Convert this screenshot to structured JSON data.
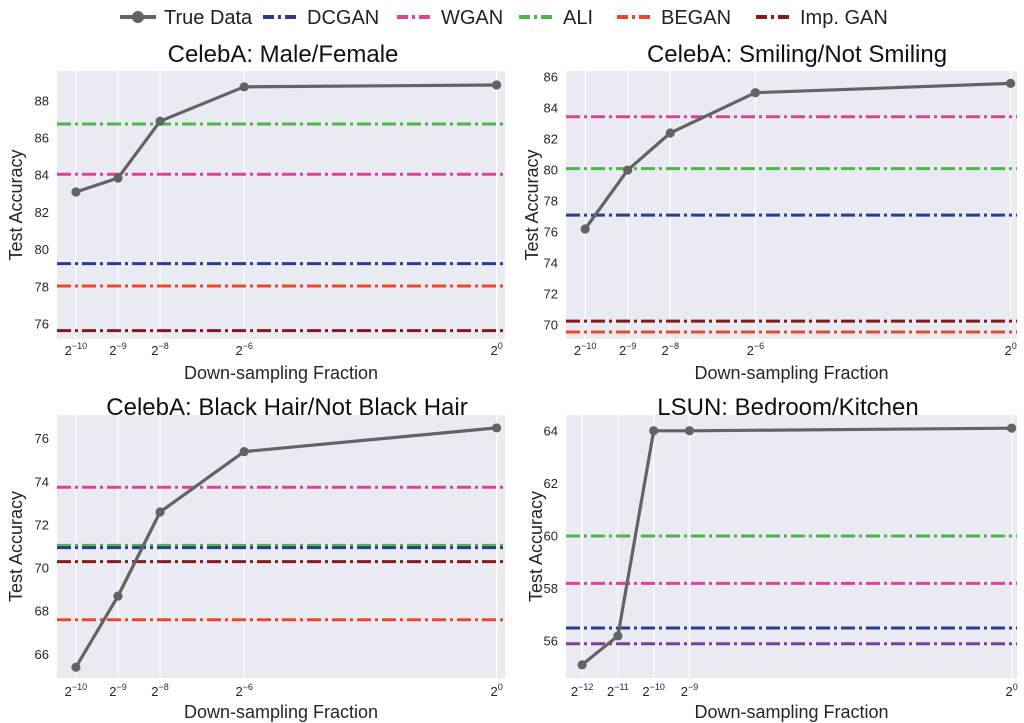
{
  "colors": {
    "background": "#eaeaf2",
    "grid": "#ffffff",
    "true_data": "#636363",
    "dcgan": "#2b3d8f",
    "wgan": "#d9449a",
    "ali": "#4bb848",
    "began": "#e8492a",
    "imp_gan": "#871a18",
    "lsun_imp_gan": "#7b3f9a"
  },
  "legend": {
    "items": [
      {
        "key": "true_data",
        "label": "True Data"
      },
      {
        "key": "dcgan",
        "label": "DCGAN"
      },
      {
        "key": "wgan",
        "label": "WGAN"
      },
      {
        "key": "ali",
        "label": "ALI"
      },
      {
        "key": "began",
        "label": "BEGAN"
      },
      {
        "key": "imp_gan",
        "label": "Imp. GAN"
      }
    ]
  },
  "chart_data": [
    {
      "type": "line",
      "title": "CelebA: Male/Female",
      "xlabel": "Down-sampling Fraction",
      "ylabel": "Test Accuracy",
      "x_scale": "log2",
      "x": [
        -10,
        -9,
        -8,
        -6,
        0
      ],
      "x_ticklabels": [
        "2^-10",
        "2^-9",
        "2^-8",
        "2^-6",
        "2^0"
      ],
      "yticks": [
        76,
        78,
        80,
        82,
        84,
        86,
        88
      ],
      "ylim": [
        75.2,
        89.6
      ],
      "true_data": [
        83.1,
        83.85,
        86.9,
        88.75,
        88.85
      ],
      "baselines": [
        {
          "key": "ali",
          "name": "ALI",
          "value": 86.75
        },
        {
          "key": "wgan",
          "name": "WGAN",
          "value": 84.05
        },
        {
          "key": "dcgan",
          "name": "DCGAN",
          "value": 79.25
        },
        {
          "key": "began",
          "name": "BEGAN",
          "value": 78.05
        },
        {
          "key": "imp_gan",
          "name": "Imp. GAN",
          "value": 75.65
        }
      ]
    },
    {
      "type": "line",
      "title": "CelebA: Smiling/Not Smiling",
      "xlabel": "Down-sampling Fraction",
      "ylabel": "Test Accuracy",
      "x_scale": "log2",
      "x": [
        -10,
        -9,
        -8,
        -6,
        0
      ],
      "x_ticklabels": [
        "2^-10",
        "2^-9",
        "2^-8",
        "2^-6",
        "2^0"
      ],
      "yticks": [
        70,
        72,
        74,
        76,
        78,
        80,
        82,
        84,
        86
      ],
      "ylim": [
        69.1,
        86.4
      ],
      "true_data": [
        76.2,
        80.0,
        82.4,
        85.0,
        85.6
      ],
      "baselines": [
        {
          "key": "wgan",
          "name": "WGAN",
          "value": 83.45
        },
        {
          "key": "ali",
          "name": "ALI",
          "value": 80.1
        },
        {
          "key": "dcgan",
          "name": "DCGAN",
          "value": 77.1
        },
        {
          "key": "imp_gan",
          "name": "Imp. GAN",
          "value": 70.25
        },
        {
          "key": "began",
          "name": "BEGAN",
          "value": 69.55
        }
      ]
    },
    {
      "type": "line",
      "title": "CelebA: Black Hair/Not Black Hair",
      "xlabel": "Down-sampling Fraction",
      "ylabel": "Test Accuracy",
      "x_scale": "log2",
      "x": [
        -10,
        -9,
        -8,
        -6,
        0
      ],
      "x_ticklabels": [
        "2^-10",
        "2^-9",
        "2^-8",
        "2^-6",
        "2^0"
      ],
      "yticks": [
        66,
        68,
        70,
        72,
        74,
        76
      ],
      "ylim": [
        64.9,
        77.1
      ],
      "true_data": [
        65.4,
        68.7,
        72.6,
        75.4,
        76.5
      ],
      "baselines": [
        {
          "key": "wgan",
          "name": "WGAN",
          "value": 73.75
        },
        {
          "key": "ali",
          "name": "ALI",
          "value": 71.05
        },
        {
          "key": "dcgan",
          "name": "DCGAN",
          "value": 70.95
        },
        {
          "key": "imp_gan",
          "name": "Imp. GAN",
          "value": 70.3
        },
        {
          "key": "began",
          "name": "BEGAN",
          "value": 67.6
        }
      ]
    },
    {
      "type": "line",
      "title": "LSUN: Bedroom/Kitchen",
      "xlabel": "Down-sampling Fraction",
      "ylabel": "Test Accuracy",
      "x_scale": "log2",
      "x": [
        -12,
        -11,
        -10,
        -9,
        0
      ],
      "x_ticklabels": [
        "2^-12",
        "2^-11",
        "2^-10",
        "2^-9",
        "2^0"
      ],
      "yticks": [
        56,
        58,
        60,
        62,
        64
      ],
      "ylim": [
        54.6,
        64.6
      ],
      "true_data": [
        55.1,
        56.2,
        64.0,
        64.0,
        64.1
      ],
      "baselines": [
        {
          "key": "ali",
          "name": "ALI",
          "value": 60.0
        },
        {
          "key": "wgan",
          "name": "WGAN",
          "value": 58.2
        },
        {
          "key": "dcgan",
          "name": "DCGAN",
          "value": 56.5
        },
        {
          "key": "lsun_imp_gan",
          "name": "Imp. GAN",
          "value": 55.9
        }
      ]
    }
  ]
}
